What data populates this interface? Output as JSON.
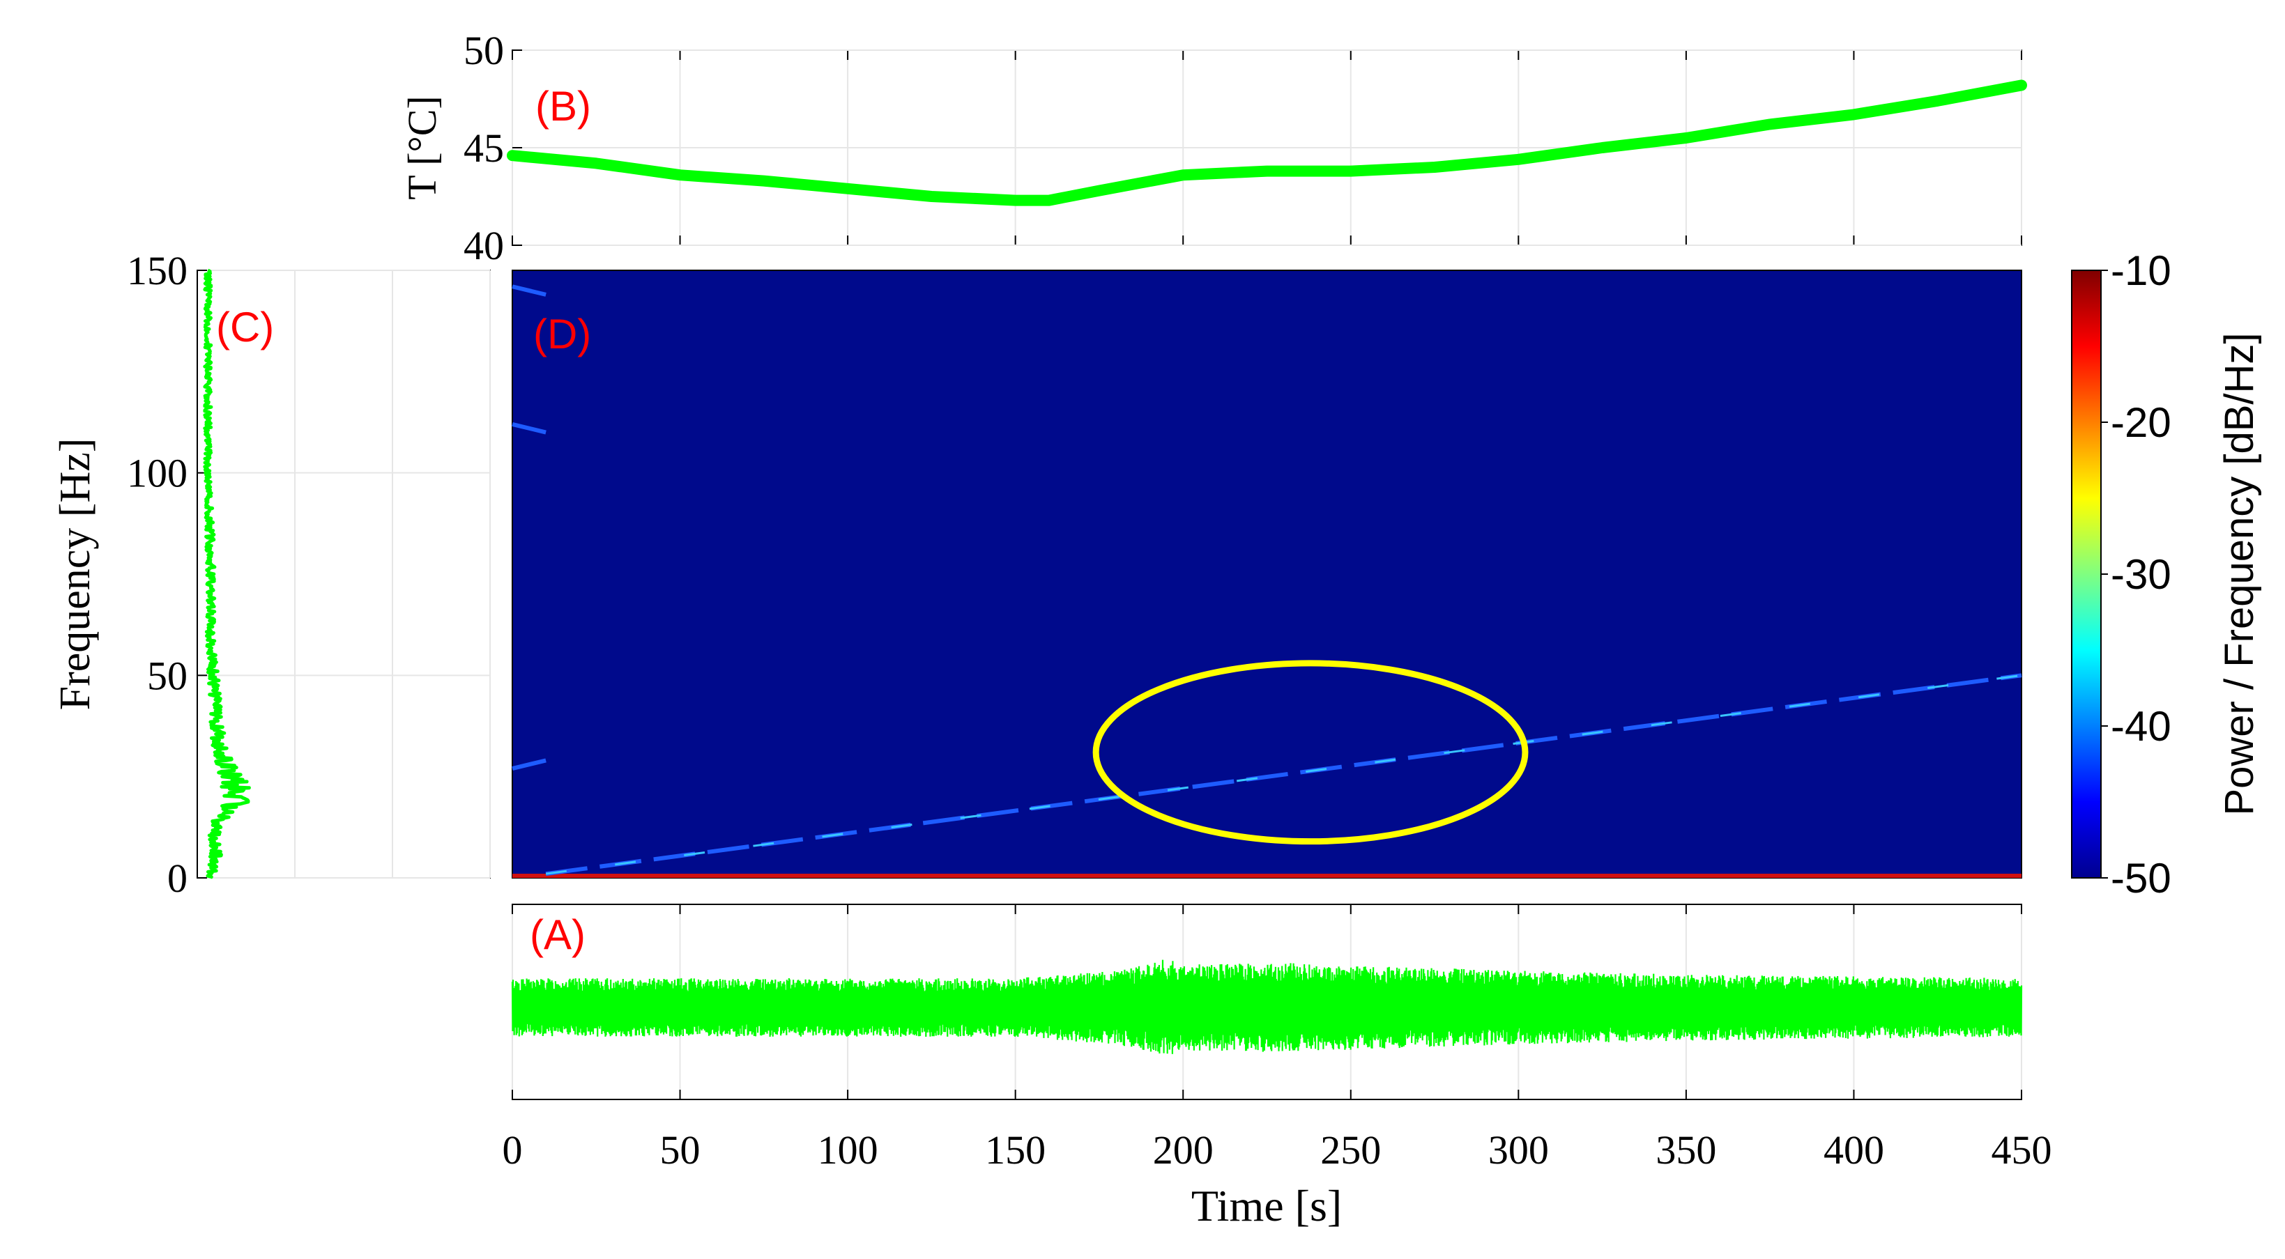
{
  "colors": {
    "trace": "#00ff00",
    "panel_label": "#ff0000",
    "ellipse": "#ffff00",
    "spectrogram_bg": "#000a8c",
    "axis": "#000000",
    "grid": "#e6e6e6"
  },
  "chart_data": [
    {
      "panel": "B",
      "type": "line",
      "label": "(B)",
      "ylabel": "T [°C]",
      "ylim": [
        40,
        50
      ],
      "yticks": [
        "40",
        "45",
        "50"
      ],
      "xlim": [
        0,
        450
      ],
      "grid": true,
      "x": [
        0,
        25,
        50,
        75,
        100,
        125,
        150,
        160,
        175,
        200,
        225,
        250,
        275,
        300,
        325,
        350,
        375,
        400,
        425,
        450
      ],
      "y": [
        44.6,
        44.2,
        43.6,
        43.3,
        42.9,
        42.5,
        42.3,
        42.3,
        42.8,
        43.6,
        43.8,
        43.8,
        44.0,
        44.4,
        45.0,
        45.5,
        46.2,
        46.7,
        47.4,
        48.2
      ]
    },
    {
      "panel": "C",
      "type": "line",
      "label": "(C)",
      "ylabel": "Frequency [Hz]",
      "ylim": [
        0,
        150
      ],
      "yticks": [
        "0",
        "50",
        "100",
        "150"
      ],
      "grid": true,
      "frequency": [
        0,
        5,
        10,
        15,
        20,
        25,
        30,
        35,
        40,
        50,
        60,
        80,
        100,
        120,
        140,
        150
      ],
      "amplitude": [
        0.04,
        0.06,
        0.05,
        0.08,
        0.15,
        0.12,
        0.09,
        0.07,
        0.06,
        0.05,
        0.04,
        0.04,
        0.03,
        0.03,
        0.03,
        0.03
      ]
    },
    {
      "panel": "D",
      "type": "heatmap",
      "label": "(D)",
      "ylim": [
        0,
        150
      ],
      "xlim": [
        0,
        450
      ],
      "grid": true,
      "colorbar": {
        "label": "Power / Frequency [dB/Hz]",
        "range": [
          -50,
          -10
        ],
        "ticks": [
          "-10",
          "-20",
          "-30",
          "-40",
          "-50"
        ]
      },
      "ridges": [
        {
          "x": [
            10,
            450
          ],
          "y": [
            1,
            50
          ]
        },
        {
          "x": [
            0,
            10
          ],
          "y": [
            27,
            29
          ]
        },
        {
          "x": [
            0,
            10
          ],
          "y": [
            112,
            110
          ]
        },
        {
          "x": [
            0,
            10
          ],
          "y": [
            146,
            144
          ]
        }
      ],
      "annotation": {
        "type": "ellipse",
        "center": [
          238,
          31
        ],
        "semi_axes": [
          64,
          22
        ]
      }
    },
    {
      "panel": "A",
      "type": "line",
      "label": "(A)",
      "xlabel": "Time [s]",
      "xlim": [
        0,
        450
      ],
      "xticks": [
        "0",
        "50",
        "100",
        "150",
        "200",
        "250",
        "300",
        "350",
        "400",
        "450"
      ],
      "grid": true,
      "envelope": {
        "x": [
          0,
          100,
          150,
          180,
          195,
          200,
          230,
          260,
          300,
          350,
          400,
          450
        ],
        "amplitude": [
          0.3,
          0.3,
          0.3,
          0.38,
          0.5,
          0.44,
          0.46,
          0.42,
          0.38,
          0.34,
          0.32,
          0.3
        ]
      }
    }
  ]
}
